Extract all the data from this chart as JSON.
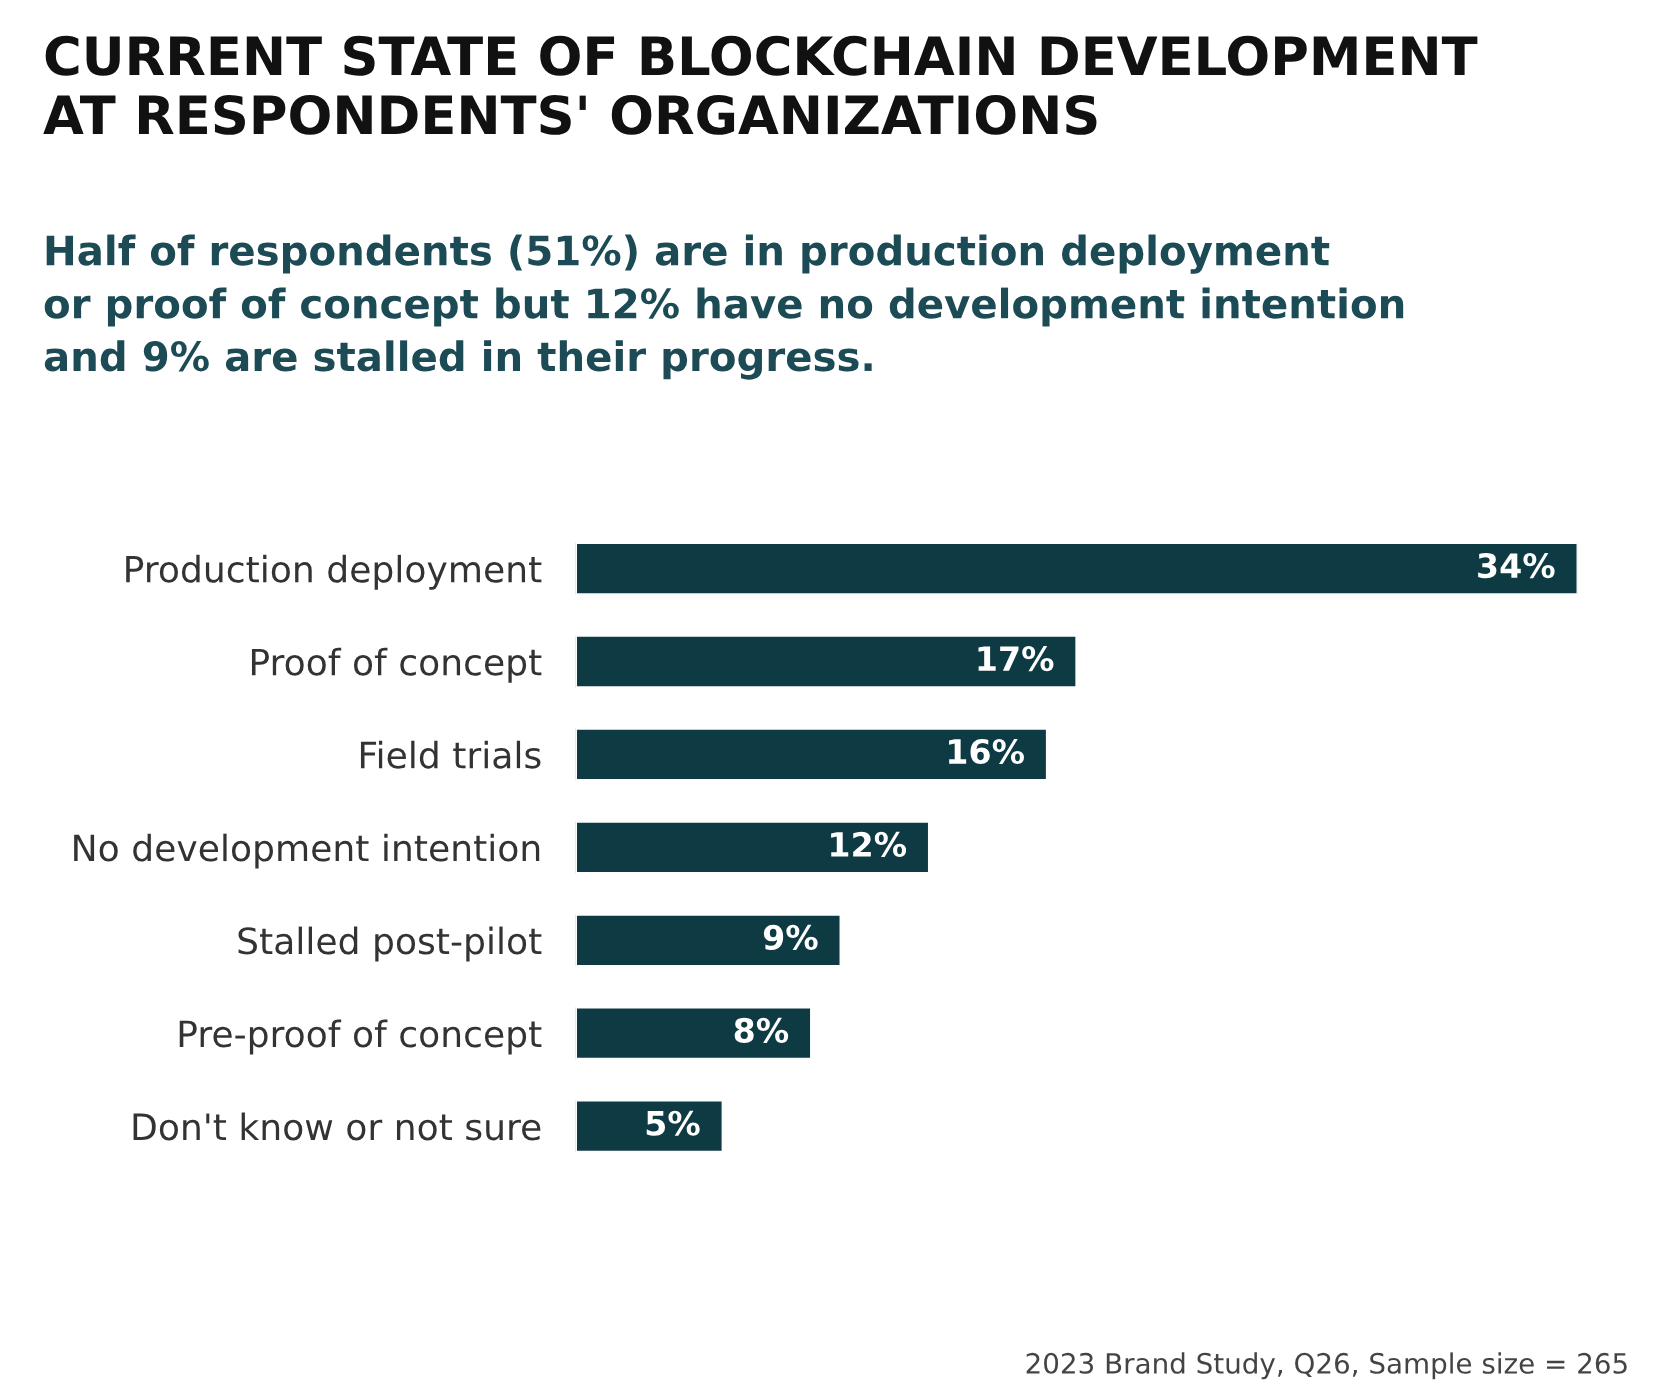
{
  "chart_data": {
    "type": "bar",
    "orientation": "horizontal",
    "title": "CURRENT STATE OF BLOCKCHAIN DEVELOPMENT\nAT RESPONDENTS' ORGANIZATIONS",
    "subtitle": "Half of respondents (51%) are in production deployment\nor proof of concept but 12% have no development intention\nand 9% are stalled in their progress.",
    "categories": [
      "Production deployment",
      "Proof of concept",
      "Field trials",
      "No development intention",
      "Stalled post-pilot",
      "Pre-proof of concept",
      "Don't know or not sure"
    ],
    "values": [
      34,
      17,
      16,
      12,
      9,
      8,
      5
    ],
    "value_labels": [
      "34%",
      "17%",
      "16%",
      "12%",
      "9%",
      "8%",
      "5%"
    ],
    "color": "#0e3a44",
    "tick_labels": "y",
    "grid": false,
    "legend": false,
    "annotations": [
      "2023 Brand Study, Q26, Sample size = 265"
    ]
  }
}
